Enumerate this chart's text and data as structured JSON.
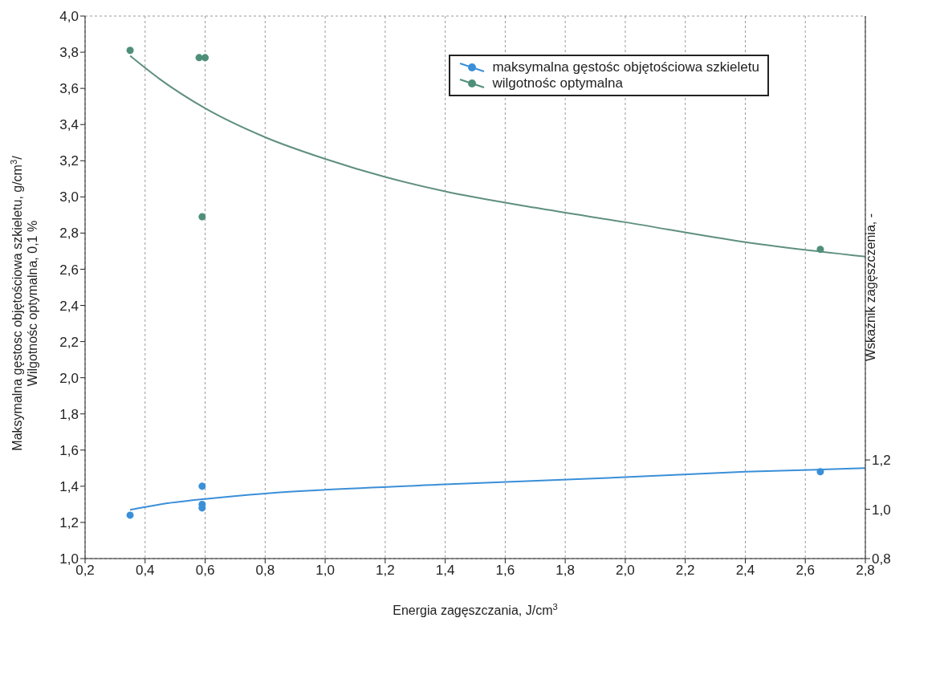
{
  "chart_data": {
    "type": "scatter",
    "xlabel": "Energia zagęszczania, J/cm$^{3}$",
    "ylabel": "Maksymalna gęstosc objętościowa szkieletu, g/cm$^{3}$/\nWilgotnośc optymalna, 0,1 %",
    "y2label": "Wskaźnik zagęszczenia, -",
    "series": [
      {
        "name": "maksymalna gęstośc objętościowa szkieletu",
        "color": "#3a8fd8",
        "x": [
          0.35,
          0.59,
          0.59,
          0.59,
          2.65
        ],
        "values": [
          1.24,
          1.4,
          1.3,
          1.28,
          1.48
        ],
        "marker": "circle"
      },
      {
        "name": "wilgotnośc optymalna",
        "color": "#4f8f7a",
        "x": [
          0.35,
          0.58,
          0.6,
          0.59,
          2.65
        ],
        "values": [
          3.81,
          3.77,
          3.77,
          2.89,
          2.71
        ],
        "marker": "circle"
      },
      {
        "type": "line",
        "color": "#3a8fd8",
        "x": [
          0.35,
          0.45,
          0.6,
          0.8,
          1.0,
          1.4,
          2.0,
          2.4,
          2.8
        ],
        "values": [
          1.27,
          1.3,
          1.33,
          1.36,
          1.38,
          1.41,
          1.45,
          1.48,
          1.5
        ],
        "marker": "none"
      },
      {
        "type": "line",
        "color": "#5f8f80",
        "x": [
          0.35,
          0.45,
          0.6,
          0.8,
          1.0,
          1.2,
          1.4,
          1.7,
          2.0,
          2.4,
          2.8
        ],
        "values": [
          3.78,
          3.65,
          3.49,
          3.33,
          3.21,
          3.11,
          3.03,
          2.94,
          2.86,
          2.75,
          2.67
        ],
        "marker": "none"
      }
    ],
    "xlim": [
      0.2,
      2.8
    ],
    "xticks": [
      {
        "value": 0.2,
        "label": "0,2"
      },
      {
        "value": 0.4,
        "label": "0,4"
      },
      {
        "value": 0.6,
        "label": "0,6"
      },
      {
        "value": 0.8,
        "label": "0,8"
      },
      {
        "value": 1.0,
        "label": "1,0"
      },
      {
        "value": 1.2,
        "label": "1,2"
      },
      {
        "value": 1.4,
        "label": "1,4"
      },
      {
        "value": 1.6,
        "label": "1,6"
      },
      {
        "value": 1.8,
        "label": "1,8"
      },
      {
        "value": 2.0,
        "label": "2,0"
      },
      {
        "value": 2.2,
        "label": "2,2"
      },
      {
        "value": 2.4,
        "label": "2,4"
      },
      {
        "value": 2.6,
        "label": "2,6"
      },
      {
        "value": 2.8,
        "label": "2,8"
      }
    ],
    "ylim": [
      1.0,
      4.0
    ],
    "yticks": [
      {
        "value": 1.0,
        "label": "1,0"
      },
      {
        "value": 1.2,
        "label": "1,2"
      },
      {
        "value": 1.4,
        "label": "1,4"
      },
      {
        "value": 1.6,
        "label": "1,6"
      },
      {
        "value": 1.8,
        "label": "1,8"
      },
      {
        "value": 2.0,
        "label": "2,0"
      },
      {
        "value": 2.2,
        "label": "2,2"
      },
      {
        "value": 2.4,
        "label": "2,4"
      },
      {
        "value": 2.6,
        "label": "2,6"
      },
      {
        "value": 2.8,
        "label": "2,8"
      },
      {
        "value": 3.0,
        "label": "3,0"
      },
      {
        "value": 3.2,
        "label": "3,2"
      },
      {
        "value": 3.4,
        "label": "3,4"
      },
      {
        "value": 3.6,
        "label": "3,6"
      },
      {
        "value": 3.8,
        "label": "3,8"
      },
      {
        "value": 4.0,
        "label": "4,0"
      }
    ],
    "y2lim": [
      0.8,
      3.0
    ],
    "y2ticks": [
      {
        "value": 0.8,
        "label": "0,8"
      },
      {
        "value": 1.0,
        "label": "1,0"
      },
      {
        "value": 1.2,
        "label": "1,2"
      }
    ],
    "grid": true,
    "legend": "top right",
    "line_style": "solid"
  }
}
